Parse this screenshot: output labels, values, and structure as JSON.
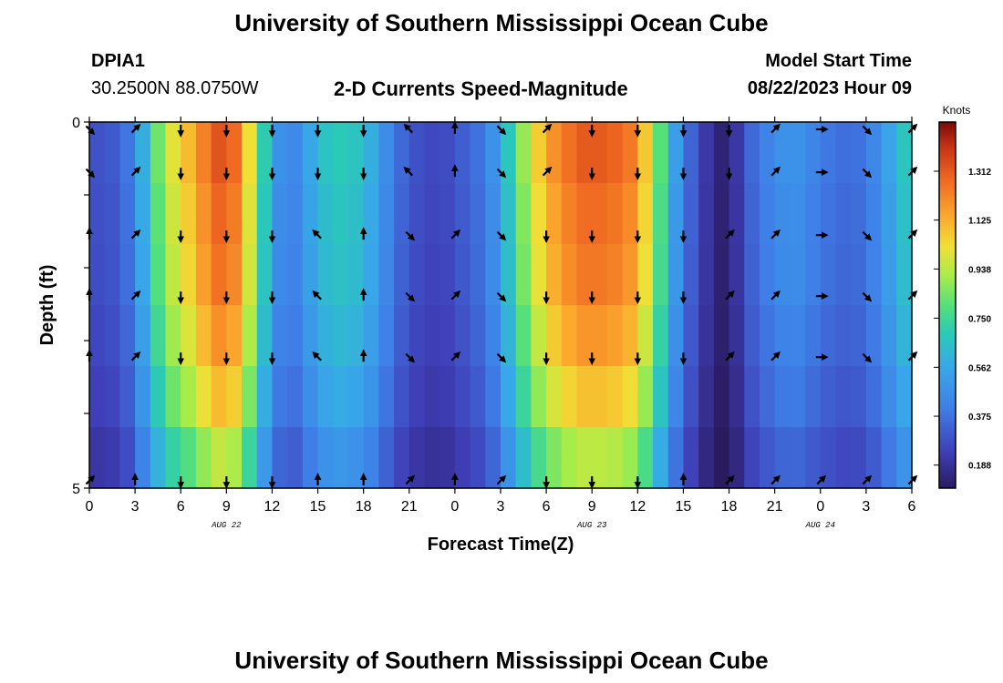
{
  "header": {
    "title": "University of Southern Mississippi Ocean Cube",
    "station_id": "DPIA1",
    "coords": "30.2500N  88.0750W",
    "subtitle": "2-D Currents Speed-Magnitude",
    "model_label": "Model Start Time",
    "model_time": "08/22/2023 Hour 09"
  },
  "footer": {
    "title": "University of Southern Mississippi Ocean Cube"
  },
  "chart_data": {
    "type": "heatmap",
    "title": "2-D Currents Speed-Magnitude",
    "xlabel": "Forecast Time(Z)",
    "ylabel": "Depth (ft)",
    "x_tick_labels": [
      "0",
      "3",
      "6",
      "9",
      "12",
      "15",
      "18",
      "21",
      "0",
      "3",
      "6",
      "9",
      "12",
      "15",
      "18",
      "21",
      "0",
      "3",
      "6"
    ],
    "date_labels": [
      {
        "text": "AUG 22",
        "tick": 9
      },
      {
        "text": "AUG 23",
        "tick": 33
      },
      {
        "text": "AUG 24",
        "tick": 48
      }
    ],
    "y_tick_labels": [
      "0",
      "5"
    ],
    "ylim": [
      0,
      5
    ],
    "x_hours": [
      0,
      54
    ],
    "colorbar": {
      "label": "Knots",
      "ticks": [
        "1.312",
        "1.125",
        "0.938",
        "0.750",
        "0.562",
        "0.375",
        "0.188"
      ],
      "tick_values": [
        1.312,
        1.125,
        0.938,
        0.75,
        0.562,
        0.375,
        0.188
      ],
      "range": [
        0.1,
        1.5
      ]
    },
    "depth_levels": 5,
    "speed_profile_knots": [
      [
        0,
        0.28
      ],
      [
        2,
        0.32
      ],
      [
        3,
        0.45
      ],
      [
        4,
        0.72
      ],
      [
        5,
        0.95
      ],
      [
        6,
        1.05
      ],
      [
        7,
        1.15
      ],
      [
        8,
        1.3
      ],
      [
        9,
        1.35
      ],
      [
        10,
        1.2
      ],
      [
        11,
        0.85
      ],
      [
        12,
        0.55
      ],
      [
        13,
        0.4
      ],
      [
        14,
        0.5
      ],
      [
        15,
        0.62
      ],
      [
        16,
        0.7
      ],
      [
        17,
        0.68
      ],
      [
        18,
        0.65
      ],
      [
        19,
        0.52
      ],
      [
        20,
        0.4
      ],
      [
        21,
        0.3
      ],
      [
        23,
        0.25
      ],
      [
        24,
        0.3
      ],
      [
        26,
        0.4
      ],
      [
        27,
        0.55
      ],
      [
        28,
        0.8
      ],
      [
        30,
        1.15
      ],
      [
        32,
        1.3
      ],
      [
        33,
        1.32
      ],
      [
        34,
        1.3
      ],
      [
        35,
        1.28
      ],
      [
        36,
        1.2
      ],
      [
        37,
        0.95
      ],
      [
        38,
        0.65
      ],
      [
        39,
        0.4
      ],
      [
        40,
        0.28
      ],
      [
        41,
        0.15
      ],
      [
        42,
        0.12
      ],
      [
        43,
        0.3
      ],
      [
        44,
        0.4
      ],
      [
        45,
        0.45
      ],
      [
        46,
        0.5
      ],
      [
        47,
        0.46
      ],
      [
        48,
        0.4
      ],
      [
        49,
        0.38
      ],
      [
        50,
        0.35
      ],
      [
        51,
        0.4
      ],
      [
        52,
        0.48
      ],
      [
        53,
        0.62
      ],
      [
        54,
        0.72
      ]
    ],
    "depth_factors": [
      1.0,
      0.97,
      0.95,
      0.9,
      0.83,
      0.72
    ],
    "arrow_directions_deg": {
      "near_surface": [
        135,
        45,
        180,
        180,
        180,
        180,
        180,
        315,
        0,
        135,
        45,
        180,
        180,
        180,
        180,
        45,
        90,
        135,
        45
      ],
      "mid": [
        0,
        45,
        180,
        180,
        180,
        315,
        0,
        135,
        45,
        135,
        180,
        180,
        180,
        180,
        45,
        45,
        90,
        135,
        45
      ],
      "bottom": [
        45,
        0,
        180,
        180,
        180,
        0,
        0,
        45,
        0,
        45,
        180,
        180,
        180,
        0,
        45,
        45,
        45,
        45,
        45
      ]
    }
  }
}
